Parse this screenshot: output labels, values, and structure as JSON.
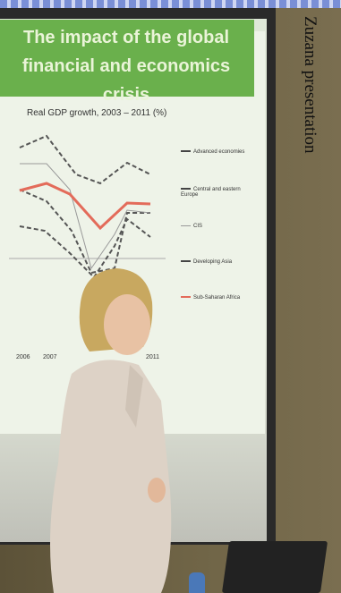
{
  "caption": "Zuzana presentation",
  "slide": {
    "title": "The impact of the global financial and economics crisis",
    "chart_title": "Real GDP growth, 2003 – 2011 (%)",
    "xticks": [
      "2006",
      "2007",
      "2011"
    ],
    "legend": [
      "Advanced economies",
      "Central and eastern Europe",
      "CIS",
      "Developing Asia",
      "Sub-Saharan Africa"
    ]
  }
}
